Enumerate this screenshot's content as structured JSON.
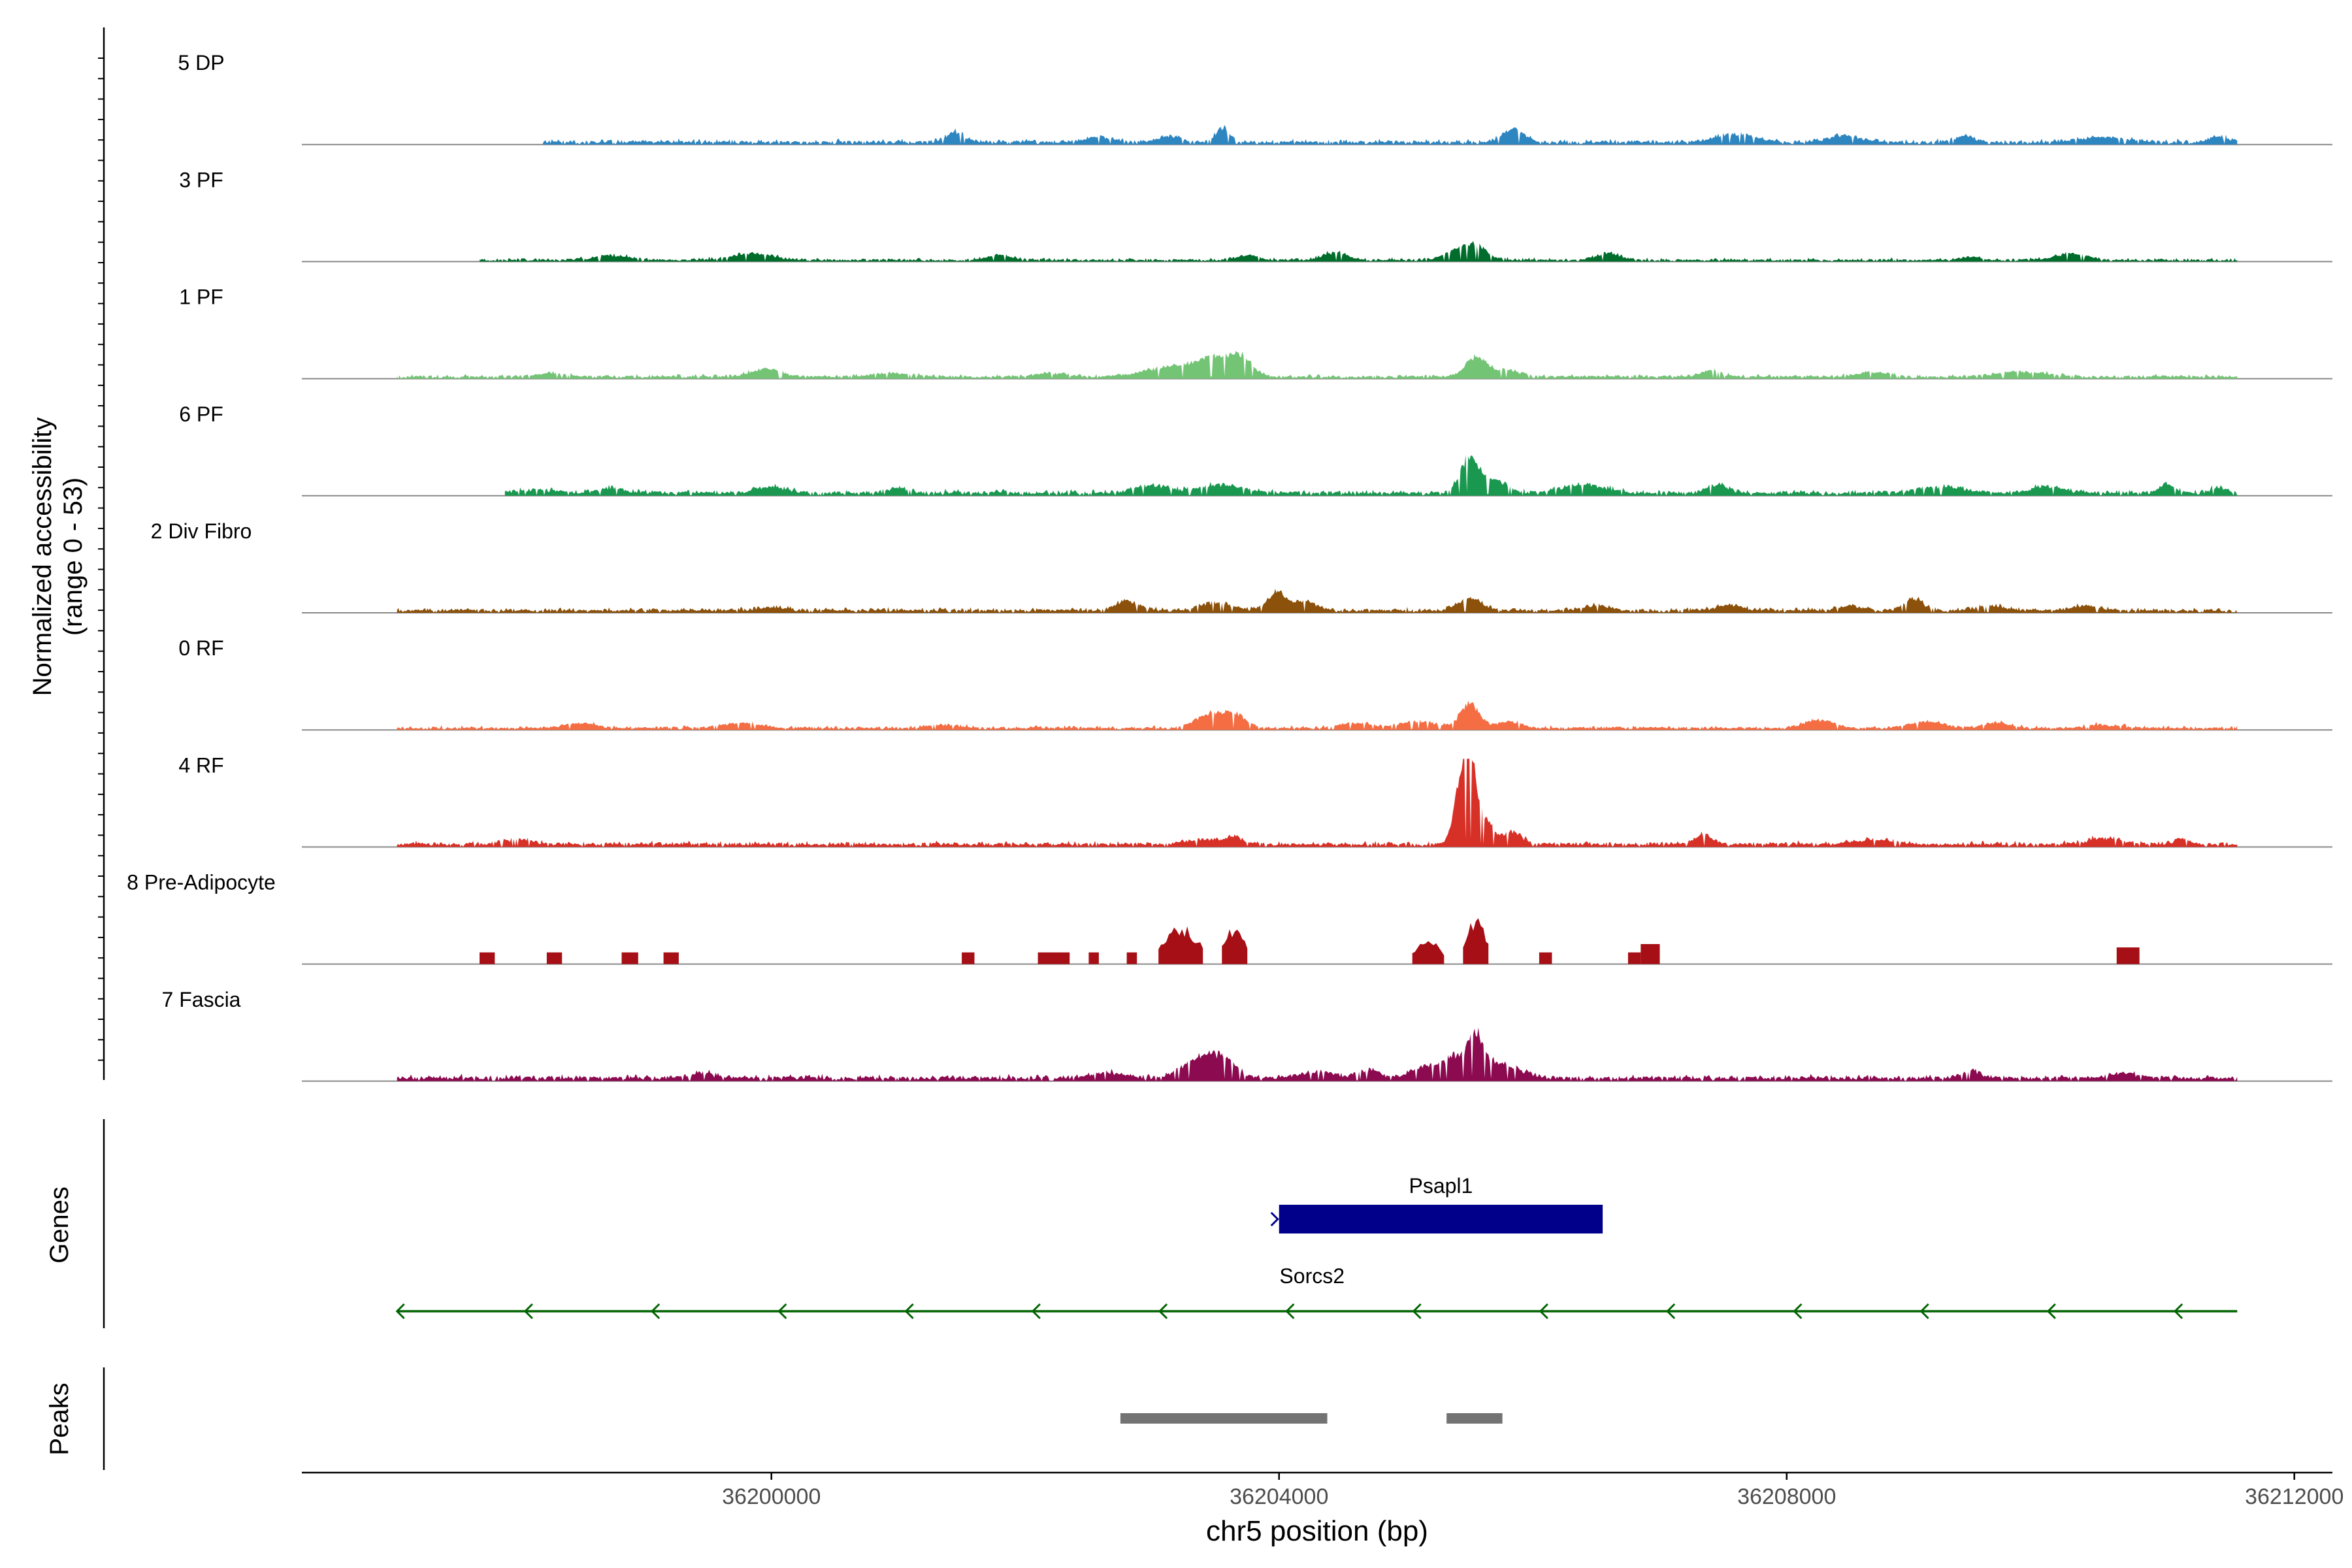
{
  "chart_data": {
    "type": "area",
    "region": "chr5",
    "xlabel": "chr5 position (bp)",
    "ylabel_line1": "Normalized accessibility",
    "ylabel_line2": "(range 0 - 53)",
    "y_range": [
      0,
      53
    ],
    "xlim": [
      36196300,
      36212300
    ],
    "data_start": 36197050,
    "data_end": 36211550,
    "x_ticks": [
      36200000,
      36204000,
      36208000,
      36212000
    ],
    "x_tick_labels": [
      "36200000",
      "36204000",
      "36208000",
      "36212000"
    ],
    "grid": false,
    "tracks": [
      {
        "name": "5 DP",
        "color": "#2e86c1",
        "background": 1.2,
        "noise": 0.7,
        "start": 36198200,
        "peaks": [
          [
            36201450,
            6,
            70
          ],
          [
            36202600,
            3,
            120
          ],
          [
            36203130,
            4,
            80
          ],
          [
            36203560,
            9,
            55
          ],
          [
            36205850,
            8,
            90
          ],
          [
            36207600,
            5,
            150
          ],
          [
            36208450,
            4,
            120
          ],
          [
            36209400,
            4,
            70
          ],
          [
            36210500,
            3,
            200
          ],
          [
            36211400,
            3,
            80
          ]
        ]
      },
      {
        "name": "3 PF",
        "color": "#006d2c",
        "background": 0.7,
        "noise": 0.6,
        "start": 36197700,
        "peaks": [
          [
            36198750,
            3,
            130
          ],
          [
            36199850,
            4,
            160
          ],
          [
            36201800,
            3,
            100
          ],
          [
            36203750,
            3,
            80
          ],
          [
            36204450,
            5,
            90
          ],
          [
            36205400,
            5,
            110
          ],
          [
            36205550,
            8,
            90
          ],
          [
            36206600,
            4,
            100
          ],
          [
            36209450,
            2,
            80
          ],
          [
            36210250,
            4,
            120
          ]
        ]
      },
      {
        "name": "1 PF",
        "color": "#74c476",
        "background": 1.0,
        "noise": 0.6,
        "start": 36197050,
        "peaks": [
          [
            36198250,
            2,
            120
          ],
          [
            36199950,
            5,
            110
          ],
          [
            36200950,
            2,
            150
          ],
          [
            36202200,
            2,
            130
          ],
          [
            36203150,
            6,
            200
          ],
          [
            36203500,
            11,
            140
          ],
          [
            36203700,
            10,
            90
          ],
          [
            36205550,
            12,
            80
          ],
          [
            36205800,
            4,
            120
          ],
          [
            36207400,
            4,
            80
          ],
          [
            36208700,
            3,
            110
          ],
          [
            36209850,
            3,
            200
          ]
        ]
      },
      {
        "name": "6 PF",
        "color": "#1a9850",
        "background": 1.4,
        "noise": 0.8,
        "start": 36197900,
        "peaks": [
          [
            36198150,
            2,
            150
          ],
          [
            36198750,
            3,
            100
          ],
          [
            36200000,
            4,
            120
          ],
          [
            36201000,
            3,
            80
          ],
          [
            36203000,
            5,
            130
          ],
          [
            36203550,
            5,
            180
          ],
          [
            36205500,
            22,
            70
          ],
          [
            36205700,
            8,
            90
          ],
          [
            36206400,
            5,
            180
          ],
          [
            36207450,
            5,
            80
          ],
          [
            36209200,
            4,
            170
          ],
          [
            36210050,
            4,
            120
          ],
          [
            36211000,
            5,
            60
          ],
          [
            36211400,
            3,
            60
          ]
        ]
      },
      {
        "name": "2 Div Fibro",
        "color": "#8c510a",
        "background": 1.2,
        "noise": 0.7,
        "start": 36197050,
        "peaks": [
          [
            36200000,
            2,
            100
          ],
          [
            36202800,
            6,
            90
          ],
          [
            36203500,
            5,
            120
          ],
          [
            36203980,
            11,
            70
          ],
          [
            36204200,
            5,
            100
          ],
          [
            36205500,
            8,
            90
          ],
          [
            36206500,
            3,
            100
          ],
          [
            36207550,
            3,
            100
          ],
          [
            36208500,
            3,
            100
          ],
          [
            36209000,
            7,
            70
          ],
          [
            36209600,
            3,
            100
          ],
          [
            36210350,
            3,
            100
          ]
        ]
      },
      {
        "name": "0 RF",
        "color": "#f46d43",
        "background": 0.9,
        "noise": 0.6,
        "start": 36197050,
        "peaks": [
          [
            36198500,
            3,
            120
          ],
          [
            36199750,
            3,
            150
          ],
          [
            36201350,
            2,
            120
          ],
          [
            36203450,
            8,
            110
          ],
          [
            36203650,
            8,
            90
          ],
          [
            36204600,
            3,
            120
          ],
          [
            36205100,
            4,
            150
          ],
          [
            36205500,
            16,
            70
          ],
          [
            36205800,
            4,
            100
          ],
          [
            36208250,
            5,
            110
          ],
          [
            36209100,
            4,
            120
          ],
          [
            36209650,
            3,
            100
          ],
          [
            36210500,
            2,
            120
          ]
        ]
      },
      {
        "name": "4 RF",
        "color": "#d73027",
        "background": 1.3,
        "noise": 0.8,
        "start": 36197050,
        "peaks": [
          [
            36198000,
            3,
            120
          ],
          [
            36203400,
            3,
            120
          ],
          [
            36203650,
            4,
            80
          ],
          [
            36205450,
            45,
            60
          ],
          [
            36205530,
            30,
            50
          ],
          [
            36205650,
            12,
            60
          ],
          [
            36205850,
            7,
            70
          ],
          [
            36207350,
            6,
            70
          ],
          [
            36208700,
            3,
            150
          ],
          [
            36210500,
            4,
            120
          ],
          [
            36211100,
            3,
            60
          ]
        ]
      },
      {
        "name": "8 Pre-Adipocyte",
        "color": "#a50f15",
        "background": 0,
        "noise": 0,
        "start": 36197050,
        "peaks": [],
        "blocks": [
          [
            36197700,
            36197820,
            7
          ],
          [
            36198230,
            36198350,
            7
          ],
          [
            36198820,
            36198950,
            7
          ],
          [
            36199150,
            36199270,
            7
          ],
          [
            36201500,
            36201600,
            7
          ],
          [
            36202100,
            36202350,
            7
          ],
          [
            36202500,
            36202580,
            7
          ],
          [
            36202800,
            36202880,
            7
          ],
          [
            36203050,
            36203400,
            22
          ],
          [
            36203550,
            36203750,
            22
          ],
          [
            36205050,
            36205300,
            14
          ],
          [
            36205450,
            36205650,
            26
          ],
          [
            36206050,
            36206150,
            7
          ],
          [
            36206750,
            36206850,
            7
          ],
          [
            36206850,
            36207000,
            12
          ],
          [
            36210600,
            36210780,
            10
          ]
        ]
      },
      {
        "name": "7 Fascia",
        "color": "#8b0a50",
        "background": 1.6,
        "noise": 0.8,
        "start": 36197050,
        "peaks": [
          [
            36199450,
            3,
            100
          ],
          [
            36202650,
            3,
            150
          ],
          [
            36203350,
            11,
            120
          ],
          [
            36203550,
            12,
            100
          ],
          [
            36204300,
            4,
            120
          ],
          [
            36204700,
            5,
            90
          ],
          [
            36205150,
            7,
            110
          ],
          [
            36205400,
            14,
            90
          ],
          [
            36205550,
            23,
            55
          ],
          [
            36205700,
            10,
            90
          ],
          [
            36205900,
            4,
            100
          ],
          [
            36209450,
            4,
            80
          ],
          [
            36210650,
            3,
            100
          ]
        ]
      }
    ],
    "genes": [
      {
        "name": "Psapl1",
        "start": 36204000,
        "end": 36206550,
        "color": "#00008b",
        "strand": "+"
      },
      {
        "name": "Sorcs2",
        "start": 36197050,
        "end": 36211550,
        "color": "#006400",
        "strand": "-",
        "arrows": [
          36197050,
          36198060,
          36199060,
          36200060,
          36201060,
          36202060,
          36203060,
          36204060,
          36205060,
          36206060,
          36207060,
          36208060,
          36209060,
          36210060,
          36211060
        ]
      }
    ],
    "peaks": [
      {
        "start": 36202750,
        "end": 36204380
      },
      {
        "start": 36205320,
        "end": 36205760
      }
    ]
  },
  "panels": {
    "genes_label": "Genes",
    "peaks_label": "Peaks"
  }
}
